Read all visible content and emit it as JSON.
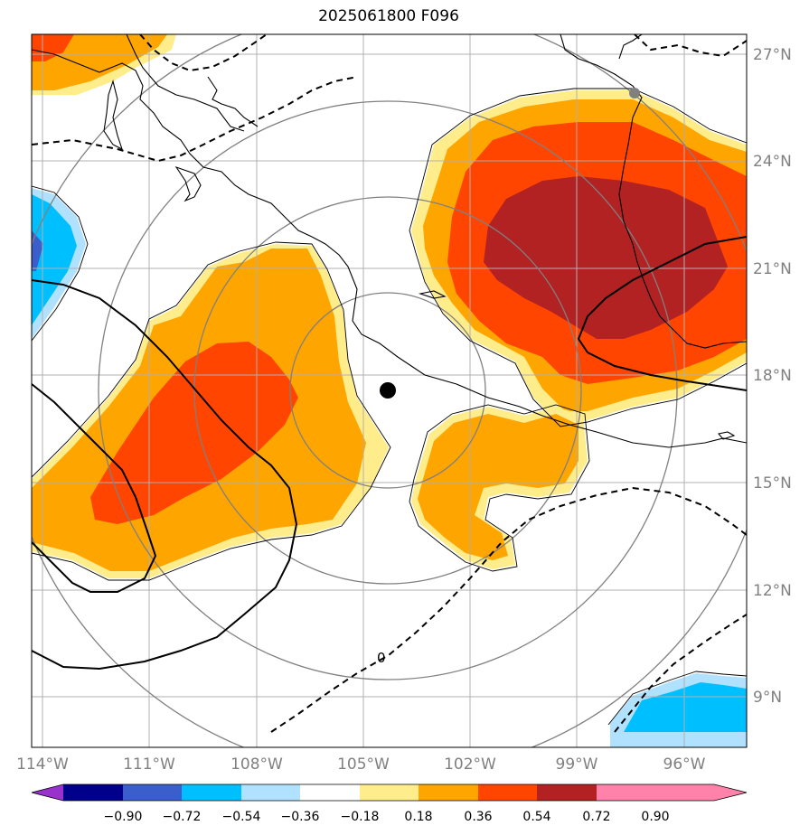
{
  "title": "2025061800 F096",
  "axes": {
    "lon_labels": [
      "114°W",
      "111°W",
      "108°W",
      "105°W",
      "102°W",
      "99°W",
      "96°W"
    ],
    "lon_values": [
      -114,
      -111,
      -108,
      -105,
      -102,
      -99,
      -96
    ],
    "lat_labels": [
      "27°N",
      "24°N",
      "21°N",
      "18°N",
      "15°N",
      "12°N",
      "9°N"
    ],
    "lat_values": [
      27,
      24,
      21,
      18,
      15,
      12,
      9
    ]
  },
  "colorbar": {
    "tick_labels": [
      "−0.90",
      "−0.72",
      "−0.54",
      "−0.36",
      "−0.18",
      "0.18",
      "0.36",
      "0.54",
      "0.72",
      "0.90"
    ],
    "colors": [
      "#9932cc",
      "#00008b",
      "#3a5fcd",
      "#00bfff",
      "#b0e2ff",
      "#ffffff",
      "#ffec8b",
      "#ffa500",
      "#ff4500",
      "#b22222",
      "#ff82ab"
    ]
  },
  "contour_label": "0",
  "storm_center": {
    "lon": -104.3,
    "lat": 17.6
  },
  "colors": {
    "grid": "#b0b0b0",
    "range_rings": "#808080",
    "coast": "#000000"
  }
}
